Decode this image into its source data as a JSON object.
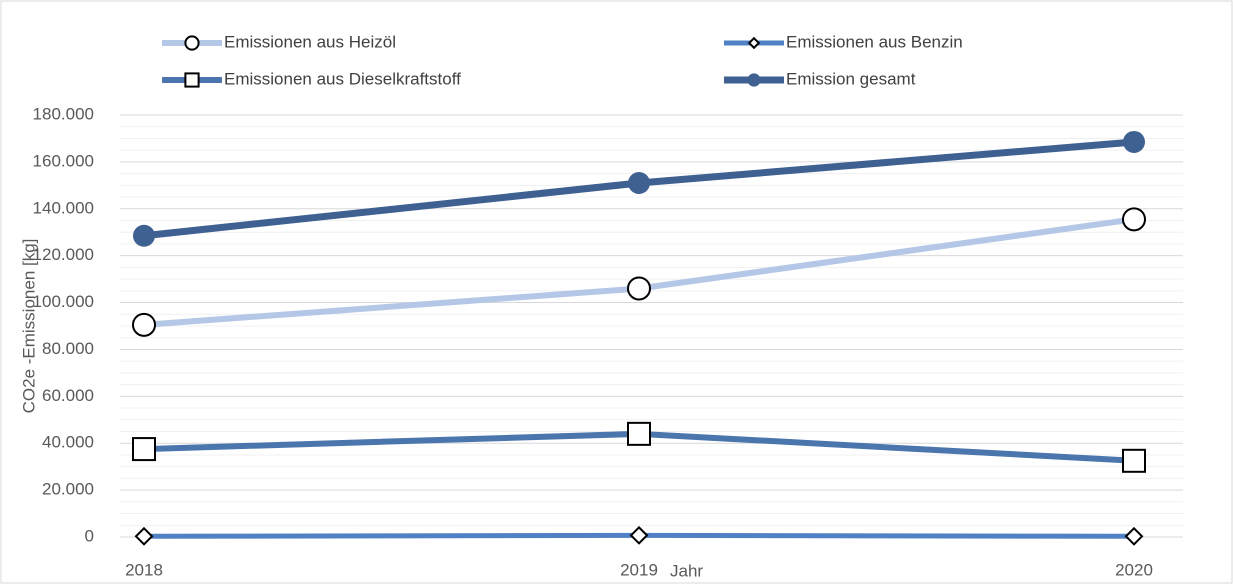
{
  "chart_data": {
    "type": "line",
    "x_label": "Jahr",
    "y_label": "CO2e -Emissionen  [kg]",
    "categories": [
      "2018",
      "2019",
      "2020"
    ],
    "series": [
      {
        "name": "Emissionen aus Heizöl",
        "color": "#b4c7e7",
        "marker": "circle-open",
        "values": [
          90500,
          106000,
          135500
        ]
      },
      {
        "name": "Emissionen aus Benzin",
        "color": "#4f81c4",
        "marker": "diamond",
        "values": [
          300,
          700,
          300
        ]
      },
      {
        "name": "Emissionen aus Dieselkraftstoff",
        "color": "#4a76ad",
        "marker": "square",
        "values": [
          37500,
          44000,
          32500
        ]
      },
      {
        "name": "Emission gesamt",
        "color": "#3e6191",
        "marker": "circle",
        "values": [
          128500,
          151000,
          168500
        ]
      }
    ],
    "ylim": [
      0,
      180000
    ],
    "yticks": [
      0,
      {
        "value": 20000,
        "label": "20.000"
      },
      {
        "value": 40000,
        "label": "40.000"
      },
      {
        "value": 60000,
        "label": "60.000"
      },
      {
        "value": 80000,
        "label": "80.000"
      },
      {
        "value": 100000,
        "label": "100.000"
      },
      {
        "value": 120000,
        "label": "120.000"
      },
      {
        "value": 140000,
        "label": "140.000"
      },
      {
        "value": 160000,
        "label": "160.000"
      },
      {
        "value": 180000,
        "label": "180.000"
      }
    ],
    "yminorticks": [
      5000,
      10000,
      15000,
      25000,
      30000,
      35000,
      45000,
      50000,
      55000,
      65000,
      70000,
      75000,
      85000,
      90000,
      95000,
      105000,
      110000,
      115000,
      125000,
      130000,
      135000,
      145000,
      150000,
      155000,
      165000,
      170000,
      175000
    ],
    "grid": true,
    "legend": "top"
  }
}
